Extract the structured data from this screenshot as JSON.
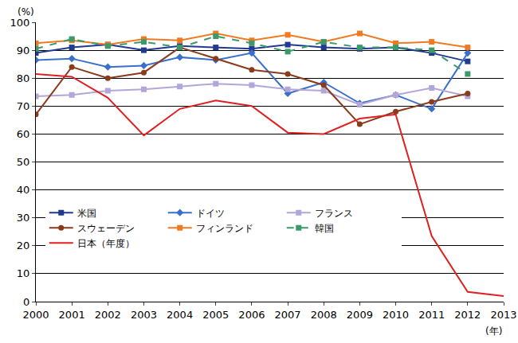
{
  "chart_data": {
    "type": "line",
    "ylabel": "(%)",
    "xlabel": "(年)",
    "x": [
      2000,
      2001,
      2002,
      2003,
      2004,
      2005,
      2006,
      2007,
      2008,
      2009,
      2010,
      2011,
      2012,
      2013
    ],
    "xlim": [
      2000,
      2013
    ],
    "xticks": [
      2000,
      2001,
      2002,
      2003,
      2004,
      2005,
      2006,
      2007,
      2008,
      2009,
      2010,
      2011,
      2012,
      2013
    ],
    "ylim": [
      0,
      100
    ],
    "yticks": [
      0,
      10,
      20,
      30,
      40,
      50,
      60,
      70,
      80,
      90,
      100
    ],
    "grid": true,
    "legend": "lower left",
    "series": [
      {
        "name": "米国",
        "color": "#1f3a8f",
        "marker": "square",
        "line_style": "solid",
        "values": [
          89,
          91,
          92,
          90,
          91.5,
          91,
          90.5,
          92,
          91,
          90.5,
          91,
          89,
          86,
          null
        ]
      },
      {
        "name": "ドイツ",
        "color": "#3a6fcb",
        "marker": "diamond",
        "line_style": "solid",
        "values": [
          86.5,
          87,
          84,
          84.5,
          87.5,
          86.5,
          89,
          74.5,
          78.5,
          71,
          74,
          69,
          89,
          null
        ]
      },
      {
        "name": "フランス",
        "color": "#b3a6d9",
        "marker": "square",
        "line_style": "solid",
        "values": [
          73.5,
          74,
          75.5,
          76,
          77,
          78,
          77.5,
          76,
          75.5,
          70.5,
          74,
          76.5,
          73.5,
          null
        ]
      },
      {
        "name": "スウェーデン",
        "color": "#8b3a1a",
        "marker": "circle",
        "line_style": "solid",
        "values": [
          67,
          84,
          80,
          82,
          91,
          87,
          83,
          81.5,
          77.5,
          63.5,
          68,
          71.5,
          74.5,
          null
        ]
      },
      {
        "name": "フィンランド",
        "color": "#f07a22",
        "marker": "square",
        "line_style": "solid",
        "values": [
          92.5,
          93.5,
          92,
          94,
          93.5,
          96,
          93.5,
          95.5,
          93,
          96,
          92.5,
          93,
          91,
          null
        ]
      },
      {
        "name": "韓国",
        "color": "#3a9a6a",
        "marker": "square",
        "line_style": "dash",
        "values": [
          90.5,
          94,
          91.5,
          93,
          91,
          95,
          92.5,
          89.5,
          93,
          91,
          91,
          90,
          81.5,
          null
        ]
      },
      {
        "name": "日本（年度）",
        "color": "#e02020",
        "marker": "none",
        "line_style": "solid",
        "values": [
          81.5,
          80.5,
          73,
          59.5,
          69,
          72,
          70,
          60.5,
          60,
          65.5,
          67,
          23.5,
          3.5,
          2
        ]
      }
    ]
  }
}
